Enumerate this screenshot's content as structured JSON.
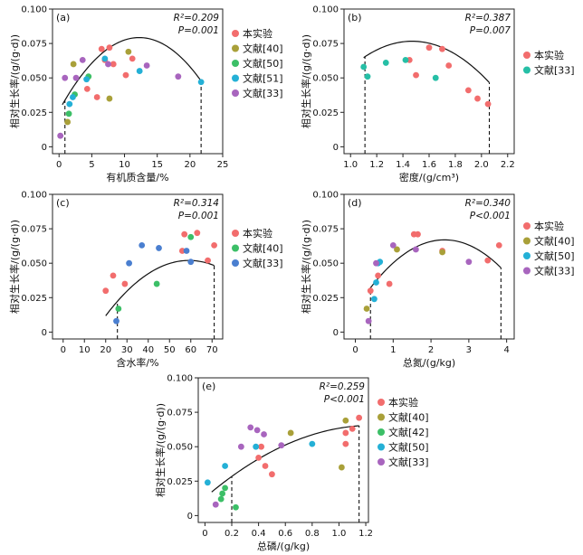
{
  "chart_data": [
    {
      "id": "a",
      "type": "scatter",
      "panel_label": "(a)",
      "xlabel": "有机质含量/%",
      "ylabel": "相对生长率/(g/(g·d))",
      "xlim": [
        -1,
        25
      ],
      "ylim": [
        -0.005,
        0.1
      ],
      "xticks": [
        0,
        5,
        10,
        15,
        20,
        25
      ],
      "yticks": [
        0,
        0.025,
        0.05,
        0.075,
        0.1
      ],
      "ytick_labels": [
        "0",
        "0.025",
        "0.050",
        "0.075",
        "0.100"
      ],
      "stat_r2": "R²=0.209",
      "stat_p": "P=0.001",
      "fit": {
        "type": "quadratic",
        "x_range": [
          0.5,
          21.8
        ],
        "coef": [
          0.0263,
          0.00865,
          -0.000353
        ]
      },
      "vlines": [
        0.9,
        21.7
      ],
      "legend_position": "right",
      "series": [
        {
          "name": "本实验",
          "color": "#f26d6d",
          "points": [
            [
              5.8,
              0.036
            ],
            [
              6.5,
              0.071
            ],
            [
              7.7,
              0.072
            ],
            [
              4.3,
              0.042
            ],
            [
              8.3,
              0.06
            ],
            [
              7.0,
              0.063
            ],
            [
              10.2,
              0.052
            ],
            [
              11.2,
              0.064
            ]
          ]
        },
        {
          "name": "文献[40]",
          "color": "#a9a039",
          "points": [
            [
              2.2,
              0.06
            ],
            [
              7.7,
              0.035
            ],
            [
              10.6,
              0.069
            ],
            [
              1.3,
              0.018
            ]
          ]
        },
        {
          "name": "文献[50]",
          "color": "#3cbf67",
          "points": [
            [
              1.5,
              0.024
            ],
            [
              2.4,
              0.038
            ],
            [
              4.5,
              0.051
            ]
          ]
        },
        {
          "name": "文献[51]",
          "color": "#24b0d6",
          "points": [
            [
              1.6,
              0.031
            ],
            [
              2.1,
              0.036
            ],
            [
              4.2,
              0.049
            ],
            [
              7.0,
              0.064
            ],
            [
              12.3,
              0.055
            ],
            [
              21.7,
              0.047
            ]
          ]
        },
        {
          "name": "文献[33]",
          "color": "#a865be",
          "points": [
            [
              0.2,
              0.008
            ],
            [
              0.9,
              0.05
            ],
            [
              2.6,
              0.05
            ],
            [
              3.6,
              0.063
            ],
            [
              7.5,
              0.06
            ],
            [
              13.4,
              0.059
            ],
            [
              18.2,
              0.051
            ]
          ]
        }
      ]
    },
    {
      "id": "b",
      "type": "scatter",
      "panel_label": "(b)",
      "xlabel": "密度/(g/cm³)",
      "ylabel": "相对生长率/(g/(g·d))",
      "xlim": [
        0.95,
        2.25
      ],
      "ylim": [
        -0.005,
        0.1
      ],
      "xticks": [
        1.0,
        1.2,
        1.4,
        1.6,
        1.8,
        2.0,
        2.2
      ],
      "xtick_labels": [
        "1.0",
        "1.2",
        "1.4",
        "1.6",
        "1.8",
        "2.0",
        "2.2"
      ],
      "yticks": [
        0,
        0.025,
        0.05,
        0.075,
        0.1
      ],
      "ytick_labels": [
        "0",
        "0.025",
        "0.050",
        "0.075",
        "0.100"
      ],
      "stat_r2": "R²=0.387",
      "stat_p": "P=0.007",
      "fit": {
        "type": "quadratic",
        "x_range": [
          1.1,
          2.06
        ],
        "coef": [
          -0.1102,
          0.2541,
          -0.0864
        ]
      },
      "vlines": [
        1.11,
        2.06
      ],
      "legend_position": "right",
      "series": [
        {
          "name": "本实验",
          "color": "#f26d6d",
          "points": [
            [
              1.45,
              0.063
            ],
            [
              1.5,
              0.052
            ],
            [
              1.6,
              0.072
            ],
            [
              1.7,
              0.071
            ],
            [
              1.75,
              0.059
            ],
            [
              1.9,
              0.041
            ],
            [
              1.97,
              0.035
            ],
            [
              2.05,
              0.031
            ]
          ]
        },
        {
          "name": "文献[33]",
          "color": "#26bfa6",
          "points": [
            [
              1.1,
              0.058
            ],
            [
              1.13,
              0.051
            ],
            [
              1.27,
              0.061
            ],
            [
              1.42,
              0.063
            ],
            [
              1.65,
              0.05
            ]
          ]
        }
      ]
    },
    {
      "id": "c",
      "type": "scatter",
      "panel_label": "(c)",
      "xlabel": "含水率/%",
      "ylabel": "相对生长率/(g/(g·d))",
      "xlim": [
        -5,
        75
      ],
      "ylim": [
        -0.005,
        0.1
      ],
      "xticks": [
        0,
        10,
        20,
        30,
        40,
        50,
        60,
        70
      ],
      "yticks": [
        0,
        0.025,
        0.05,
        0.075,
        0.1
      ],
      "ytick_labels": [
        "0",
        "0.025",
        "0.050",
        "0.075",
        "0.100"
      ],
      "stat_r2": "R²=0.314",
      "stat_p": "P=0.001",
      "fit": {
        "type": "quadratic",
        "x_range": [
          20,
          71
        ],
        "coef": [
          -0.0397,
          0.0031,
          -2.62e-05
        ]
      },
      "vlines": [
        25.5,
        71
      ],
      "legend_position": "right",
      "series": [
        {
          "name": "本实验",
          "color": "#f26d6d",
          "points": [
            [
              20,
              0.03
            ],
            [
              23.5,
              0.041
            ],
            [
              29,
              0.035
            ],
            [
              56,
              0.059
            ],
            [
              57,
              0.071
            ],
            [
              63,
              0.072
            ],
            [
              68,
              0.052
            ],
            [
              71,
              0.063
            ]
          ]
        },
        {
          "name": "文献[40]",
          "color": "#3cbf67",
          "points": [
            [
              26,
              0.017
            ],
            [
              44,
              0.035
            ],
            [
              60,
              0.069
            ]
          ]
        },
        {
          "name": "文献[33]",
          "color": "#4a7fd0",
          "points": [
            [
              25,
              0.008
            ],
            [
              31,
              0.05
            ],
            [
              37,
              0.063
            ],
            [
              45,
              0.061
            ],
            [
              58,
              0.059
            ],
            [
              60,
              0.051
            ]
          ]
        }
      ]
    },
    {
      "id": "d",
      "type": "scatter",
      "panel_label": "(d)",
      "xlabel": "总氮/(g/kg)",
      "ylabel": "相对生长率/(g/(g·d))",
      "xlim": [
        -0.3,
        4.2
      ],
      "ylim": [
        -0.005,
        0.1
      ],
      "xticks": [
        0,
        1,
        2,
        3,
        4
      ],
      "yticks": [
        0,
        0.025,
        0.05,
        0.075,
        0.1
      ],
      "ytick_labels": [
        "0",
        "0.025",
        "0.050",
        "0.075",
        "0.100"
      ],
      "stat_r2": "R²=0.340",
      "stat_p": "P<0.001",
      "fit": {
        "type": "quadratic",
        "x_range": [
          0.35,
          3.85
        ],
        "coef": [
          0.0164,
          0.0429,
          -0.0091
        ]
      },
      "vlines": [
        0.4,
        3.85
      ],
      "legend_position": "right",
      "series": [
        {
          "name": "本实验",
          "color": "#f26d6d",
          "points": [
            [
              0.4,
              0.03
            ],
            [
              0.6,
              0.041
            ],
            [
              0.9,
              0.035
            ],
            [
              1.55,
              0.071
            ],
            [
              1.65,
              0.071
            ],
            [
              2.3,
              0.059
            ],
            [
              3.8,
              0.063
            ],
            [
              3.5,
              0.052
            ]
          ]
        },
        {
          "name": "文献[40]",
          "color": "#a9a039",
          "points": [
            [
              0.3,
              0.017
            ],
            [
              1.1,
              0.06
            ],
            [
              2.3,
              0.058
            ]
          ]
        },
        {
          "name": "文献[50]",
          "color": "#24b0d6",
          "points": [
            [
              0.5,
              0.024
            ],
            [
              0.55,
              0.036
            ],
            [
              0.6,
              0.05
            ],
            [
              0.65,
              0.051
            ]
          ]
        },
        {
          "name": "文献[33]",
          "color": "#a865be",
          "points": [
            [
              0.35,
              0.008
            ],
            [
              0.55,
              0.05
            ],
            [
              1.0,
              0.063
            ],
            [
              1.6,
              0.06
            ],
            [
              3.0,
              0.051
            ]
          ]
        }
      ]
    },
    {
      "id": "e",
      "type": "scatter",
      "panel_label": "(e)",
      "xlabel": "总磷/(g/kg)",
      "ylabel": "相对生长率/(g/(g·d))",
      "xlim": [
        -0.05,
        1.22
      ],
      "ylim": [
        -0.005,
        0.1
      ],
      "xticks": [
        0,
        0.2,
        0.4,
        0.6,
        0.8,
        1.0,
        1.2
      ],
      "xtick_labels": [
        "0",
        "0.2",
        "0.4",
        "0.6",
        "0.8",
        "1.0",
        "1.2"
      ],
      "yticks": [
        0,
        0.025,
        0.05,
        0.075,
        0.1
      ],
      "ytick_labels": [
        "0",
        "0.025",
        "0.050",
        "0.075",
        "0.100"
      ],
      "stat_r2": "R²=0.259",
      "stat_p": "P<0.001",
      "fit": {
        "type": "quadratic",
        "x_range": [
          0.05,
          1.15
        ],
        "coef": [
          0.013,
          0.0837,
          -0.0333
        ]
      },
      "vlines": [
        0.2,
        1.15
      ],
      "legend_position": "right",
      "series": [
        {
          "name": "本实验",
          "color": "#f26d6d",
          "points": [
            [
              0.4,
              0.042
            ],
            [
              0.45,
              0.036
            ],
            [
              0.5,
              0.03
            ],
            [
              1.05,
              0.052
            ],
            [
              1.05,
              0.06
            ],
            [
              1.1,
              0.063
            ],
            [
              1.15,
              0.071
            ],
            [
              0.42,
              0.05
            ]
          ]
        },
        {
          "name": "文献[40]",
          "color": "#a9a039",
          "points": [
            [
              0.64,
              0.06
            ],
            [
              1.02,
              0.035
            ],
            [
              1.05,
              0.069
            ]
          ]
        },
        {
          "name": "文献[42]",
          "color": "#3cbf67",
          "points": [
            [
              0.12,
              0.012
            ],
            [
              0.13,
              0.016
            ],
            [
              0.15,
              0.02
            ],
            [
              0.23,
              0.006
            ]
          ]
        },
        {
          "name": "文献[50]",
          "color": "#24b0d6",
          "points": [
            [
              0.02,
              0.024
            ],
            [
              0.15,
              0.036
            ],
            [
              0.38,
              0.05
            ],
            [
              0.8,
              0.052
            ]
          ]
        },
        {
          "name": "文献[33]",
          "color": "#a865be",
          "points": [
            [
              0.08,
              0.008
            ],
            [
              0.27,
              0.05
            ],
            [
              0.34,
              0.064
            ],
            [
              0.39,
              0.062
            ],
            [
              0.44,
              0.059
            ],
            [
              0.57,
              0.051
            ]
          ]
        }
      ]
    }
  ]
}
